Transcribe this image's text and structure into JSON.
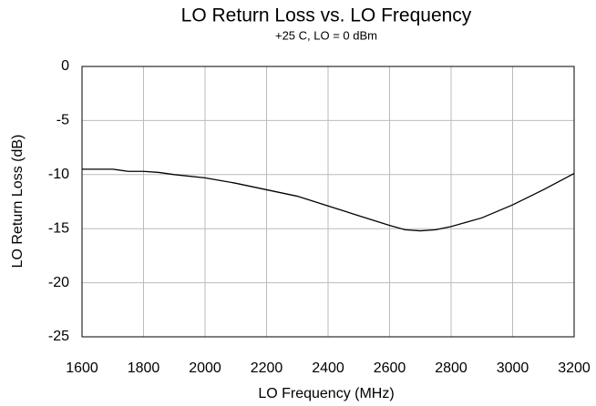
{
  "chart_data": {
    "type": "line",
    "title": "LO Return Loss vs. LO Frequency",
    "subtitle": "+25 C, LO = 0 dBm",
    "xlabel": "LO Frequency (MHz)",
    "ylabel": "LO Return Loss (dB)",
    "x": [
      1600,
      1700,
      1750,
      1800,
      1850,
      1900,
      2000,
      2100,
      2200,
      2300,
      2400,
      2500,
      2600,
      2650,
      2700,
      2750,
      2800,
      2900,
      3000,
      3100,
      3200
    ],
    "series": [
      {
        "name": "LO Return Loss",
        "color": "#000000",
        "values": [
          -9.5,
          -9.5,
          -9.7,
          -9.7,
          -9.8,
          -10.0,
          -10.3,
          -10.8,
          -11.4,
          -12.0,
          -12.9,
          -13.8,
          -14.7,
          -15.1,
          -15.2,
          -15.1,
          -14.8,
          -14.0,
          -12.8,
          -11.4,
          -9.9
        ]
      }
    ],
    "xlim": [
      1600,
      3200
    ],
    "xticks": [
      1600,
      1800,
      2000,
      2200,
      2400,
      2600,
      2800,
      3000,
      3200
    ],
    "ylim": [
      -25,
      0
    ],
    "yticks": [
      0,
      -5,
      -10,
      -15,
      -20,
      -25
    ],
    "grid": true
  }
}
